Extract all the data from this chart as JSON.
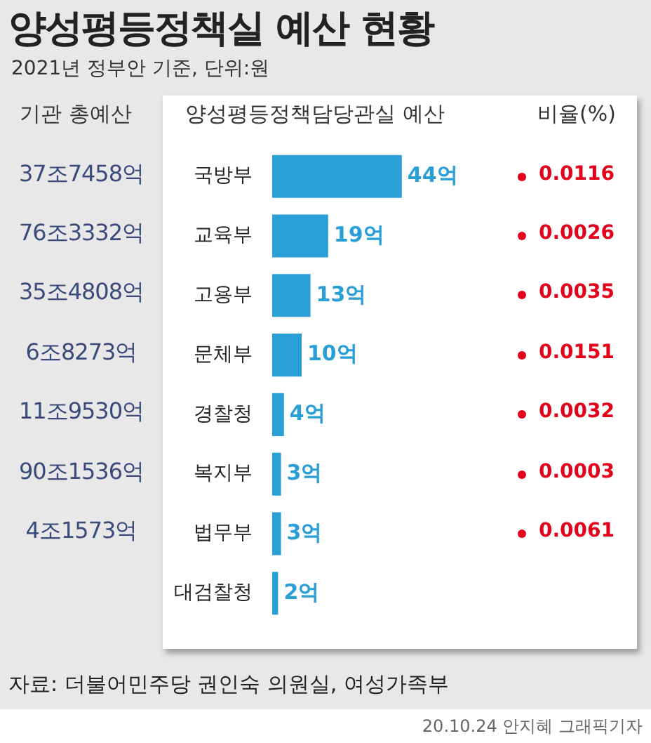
{
  "chart_data": {
    "type": "bar",
    "orientation": "horizontal",
    "title": "양성평등정책실 예산 현황",
    "subtitle": "2021년 정부안 기준, 단위:원",
    "xlabel": "양성평등정책담당관실 예산",
    "categories": [
      "국방부",
      "교육부",
      "고용부",
      "문체부",
      "경찰청",
      "복지부",
      "법무부",
      "대검찰청"
    ],
    "values": [
      44,
      19,
      13,
      10,
      4,
      3,
      3,
      2
    ],
    "color": "#2a9fd6",
    "value_labels": [
      "44억",
      "19억",
      "13억",
      "10억",
      "4억",
      "3억",
      "3억",
      "2억"
    ],
    "legend": false,
    "annotations": [
      "기관 총예산",
      "비율(%)",
      "37조7458억",
      "76조3332억",
      "35조4808억",
      "6조8273억",
      "11조9530억",
      "90조1536억",
      "4조1573억",
      "0.0116",
      "0.0026",
      "0.0035",
      "0.0151",
      "0.0032",
      "0.0003",
      "0.0061",
      "자료: 더불어민주당 권인숙 의원실, 여성가족부",
      "20.10.24 안지혜 그래픽기자"
    ]
  }
}
